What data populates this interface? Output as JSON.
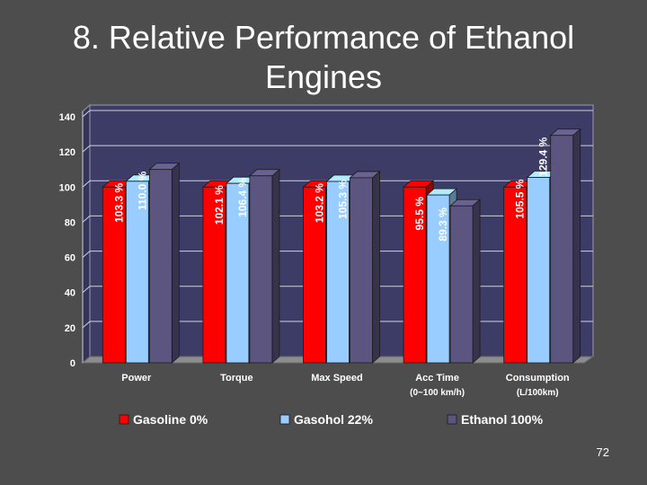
{
  "slide": {
    "title": "8. Relative Performance of Ethanol Engines",
    "page_number": "72"
  },
  "colors": {
    "background": "#4d4d4d",
    "plot_area": "#3c3c66",
    "floor": "#8c8c8c",
    "gridline": "#d0d0e0"
  },
  "chart_data": {
    "type": "bar",
    "title": "",
    "xlabel": "",
    "ylabel": "",
    "ylim": [
      0,
      140
    ],
    "yticks": [
      0,
      20,
      40,
      60,
      80,
      100,
      120,
      140
    ],
    "grid": true,
    "legend_position": "bottom",
    "categories": [
      {
        "line1": "Power",
        "line2": ""
      },
      {
        "line1": "Torque",
        "line2": ""
      },
      {
        "line1": "Max Speed",
        "line2": ""
      },
      {
        "line1": "Acc Time",
        "line2": "(0~100 km/h)"
      },
      {
        "line1": "Consumption",
        "line2": "(L/100km)"
      }
    ],
    "series": [
      {
        "name": "Gasoline 0%",
        "color": "#ff0000",
        "values": [
          100,
          100,
          100,
          100,
          100
        ],
        "labels": [
          "",
          "",
          "",
          "",
          ""
        ]
      },
      {
        "name": "Gasohol 22%",
        "color": "#99ccff",
        "values": [
          103.3,
          102.1,
          103.2,
          95.5,
          105.5
        ],
        "labels": [
          "103.3 %",
          "102.1 %",
          "103.2 %",
          "95.5 %",
          "105.5 %"
        ]
      },
      {
        "name": "Ethanol 100%",
        "color": "#5c5580",
        "values": [
          110.0,
          106.4,
          105.3,
          89.3,
          129.4
        ],
        "labels": [
          "110.0 %",
          "106.4 %",
          "105.3 %",
          "89.3 %",
          "129.4 %"
        ]
      }
    ]
  }
}
